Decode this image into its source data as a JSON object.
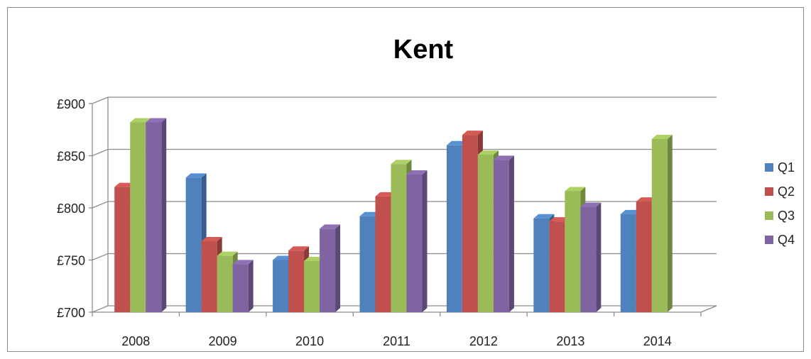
{
  "chart_data": {
    "type": "bar",
    "title": "Kent",
    "categories": [
      "2008",
      "2009",
      "2010",
      "2011",
      "2012",
      "2013",
      "2014"
    ],
    "series": [
      {
        "name": "Q1",
        "color": "#4f81bd",
        "values": [
          null,
          829,
          750,
          792,
          860,
          790,
          794
        ]
      },
      {
        "name": "Q2",
        "color": "#c0504d",
        "values": [
          820,
          768,
          759,
          811,
          870,
          787,
          806
        ]
      },
      {
        "name": "Q3",
        "color": "#9bbb59",
        "values": [
          882,
          754,
          749,
          842,
          851,
          816,
          866
        ]
      },
      {
        "name": "Q4",
        "color": "#8064a2",
        "values": [
          882,
          746,
          780,
          832,
          846,
          801,
          null
        ]
      }
    ],
    "y_ticks": [
      "£700",
      "£750",
      "£800",
      "£850",
      "£900"
    ],
    "ylim": [
      700,
      900
    ],
    "grid": true,
    "legend_position": "right"
  }
}
